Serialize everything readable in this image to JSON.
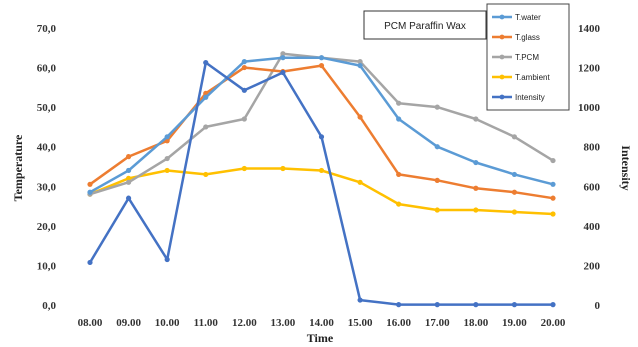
{
  "chart_data": {
    "type": "line",
    "title": "PCM Paraffin Wax",
    "xlabel": "Time",
    "ylabel": "Temperature",
    "y2label": "Intensity",
    "categories": [
      "08.00",
      "09.00",
      "10.00",
      "11.00",
      "12.00",
      "13.00",
      "14.00",
      "15.00",
      "16.00",
      "17.00",
      "18.00",
      "19.00",
      "20.00"
    ],
    "ylim": [
      0,
      70
    ],
    "y2lim": [
      0,
      1400
    ],
    "yticks": [
      "0,0",
      "10,0",
      "20,0",
      "30,0",
      "40,0",
      "50,0",
      "60,0",
      "70,0"
    ],
    "y2ticks": [
      "0",
      "200",
      "400",
      "600",
      "800",
      "1000",
      "1200",
      "1400"
    ],
    "grid": false,
    "legend_position": "top-right",
    "series": [
      {
        "name": "T.water",
        "axis": "left",
        "color": "#5b9bd5",
        "values": [
          28.5,
          34.0,
          42.5,
          52.5,
          61.5,
          62.5,
          62.5,
          60.5,
          47.0,
          40.0,
          36.0,
          33.0,
          30.5
        ]
      },
      {
        "name": "T.glass",
        "axis": "left",
        "color": "#ed7d31",
        "values": [
          30.5,
          37.5,
          41.5,
          53.5,
          60.0,
          59.0,
          60.5,
          47.5,
          33.0,
          31.5,
          29.5,
          28.5,
          27.0
        ]
      },
      {
        "name": "T.PCM",
        "axis": "left",
        "color": "#a5a5a5",
        "values": [
          28.0,
          31.0,
          37.0,
          45.0,
          47.0,
          63.5,
          62.5,
          61.5,
          51.0,
          50.0,
          47.0,
          42.5,
          36.5
        ]
      },
      {
        "name": "T.ambient",
        "axis": "left",
        "color": "#ffc000",
        "values": [
          28.0,
          32.0,
          34.0,
          33.0,
          34.5,
          34.5,
          34.0,
          31.0,
          25.5,
          24.0,
          24.0,
          23.5,
          23.0
        ]
      },
      {
        "name": "Intensity",
        "axis": "right",
        "color": "#4472c4",
        "values": [
          215,
          540,
          230,
          1225,
          1085,
          1175,
          850,
          25,
          2,
          2,
          2,
          2,
          2
        ]
      }
    ]
  }
}
